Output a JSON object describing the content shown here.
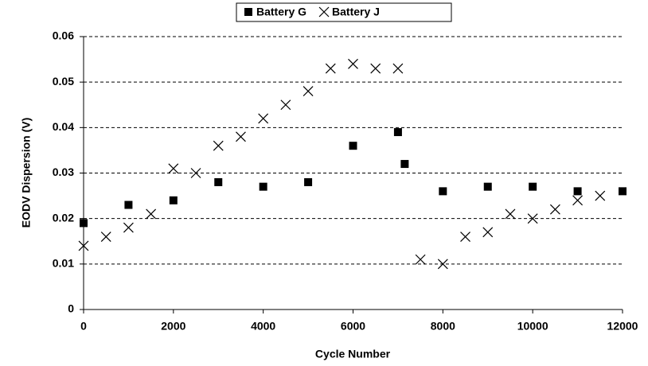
{
  "chart_data": {
    "type": "scatter",
    "xlabel": "Cycle Number",
    "ylabel": "EODV Dispersion (V)",
    "xlim": [
      0,
      12000
    ],
    "xticks": [
      0,
      2000,
      4000,
      6000,
      8000,
      10000,
      12000
    ],
    "ylim": [
      0,
      0.06
    ],
    "yticks": [
      0,
      0.01,
      0.02,
      0.03,
      0.04,
      0.05,
      0.06
    ],
    "grid": true,
    "legend": "top",
    "series": [
      {
        "name": "Battery G",
        "color": "#000000",
        "marker": "square",
        "x": [
          0,
          1000,
          2000,
          3000,
          4000,
          5000,
          6000,
          7000,
          7150,
          8000,
          9000,
          10000,
          11000,
          12000
        ],
        "values": [
          0.019,
          0.023,
          0.024,
          0.028,
          0.027,
          0.028,
          0.036,
          0.039,
          0.032,
          0.026,
          0.027,
          0.027,
          0.026,
          0.026
        ]
      },
      {
        "name": "Battery J",
        "color": "#000000",
        "marker": "x",
        "x": [
          0,
          500,
          1000,
          1500,
          2000,
          2500,
          3000,
          3500,
          4000,
          4500,
          5000,
          5500,
          6000,
          6500,
          7000,
          7500,
          8000,
          8500,
          9000,
          9500,
          10000,
          10500,
          11000,
          11500
        ],
        "values": [
          0.014,
          0.016,
          0.018,
          0.021,
          0.031,
          0.03,
          0.036,
          0.038,
          0.042,
          0.045,
          0.048,
          0.053,
          0.054,
          0.053,
          0.053,
          0.011,
          0.01,
          0.016,
          0.017,
          0.021,
          0.02,
          0.022,
          0.024,
          0.025
        ]
      }
    ]
  }
}
